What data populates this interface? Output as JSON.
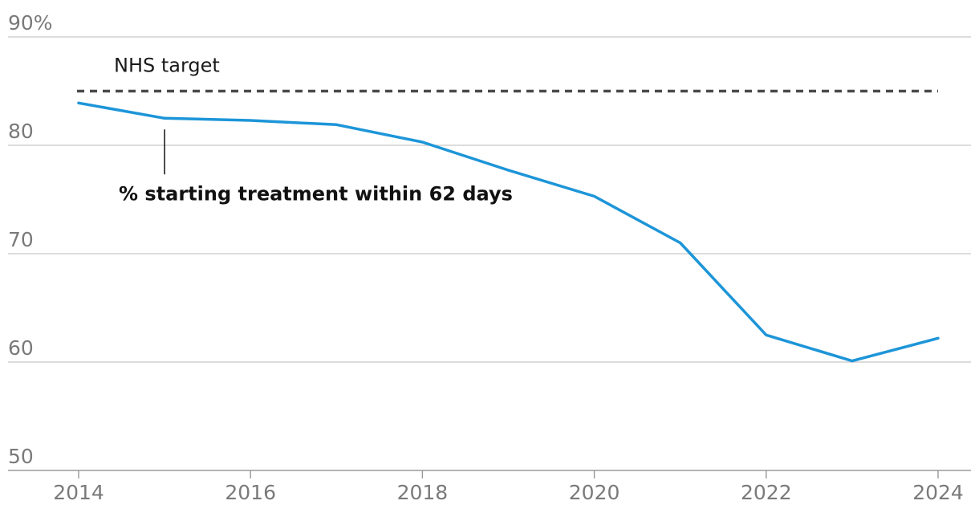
{
  "chart_data": {
    "type": "line",
    "x": [
      2014,
      2015,
      2016,
      2017,
      2018,
      2019,
      2020,
      2021,
      2022,
      2023,
      2024
    ],
    "series": [
      {
        "name": "% starting treatment within 62 days",
        "values": [
          83.9,
          82.5,
          82.3,
          81.9,
          80.3,
          77.7,
          75.3,
          71.0,
          62.5,
          60.1,
          62.2
        ]
      }
    ],
    "reference_lines": [
      {
        "label": "NHS target",
        "value": 85
      }
    ],
    "y_ticks": [
      {
        "value": 90,
        "label": "90%"
      },
      {
        "value": 80,
        "label": "80"
      },
      {
        "value": 70,
        "label": "70"
      },
      {
        "value": 60,
        "label": "60"
      },
      {
        "value": 50,
        "label": "50"
      }
    ],
    "x_ticks": [
      {
        "value": 2014,
        "label": "2014"
      },
      {
        "value": 2016,
        "label": "2016"
      },
      {
        "value": 2018,
        "label": "2018"
      },
      {
        "value": 2020,
        "label": "2020"
      },
      {
        "value": 2022,
        "label": "2022"
      },
      {
        "value": 2024,
        "label": "2024"
      }
    ],
    "xlim": [
      2014,
      2024
    ],
    "ylim": [
      50,
      90
    ],
    "grid": true,
    "colors": {
      "series": "#1d95d8",
      "target": "#4a4a4a",
      "grid": "#c8c8c8",
      "tick_text": "#7a7a7a"
    }
  }
}
